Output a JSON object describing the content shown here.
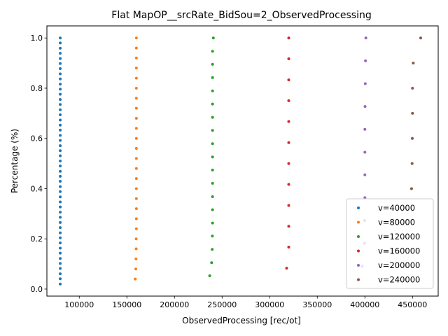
{
  "chart_data": {
    "type": "scatter",
    "title": "Flat MapOP__srcRate_BidSou=2_ObservedProcessing",
    "xlabel": "ObservedProcessing [rec/ot]",
    "ylabel": "Percentage (%)",
    "xlim": [
      66000,
      477000
    ],
    "ylim": [
      -0.028,
      1.048
    ],
    "xticks": [
      100000,
      150000,
      200000,
      250000,
      300000,
      350000,
      400000,
      450000
    ],
    "xtick_labels": [
      "100000",
      "150000",
      "200000",
      "250000",
      "300000",
      "350000",
      "400000",
      "450000"
    ],
    "yticks": [
      0.0,
      0.2,
      0.4,
      0.6,
      0.8,
      1.0
    ],
    "ytick_labels": [
      "0.0",
      "0.2",
      "0.4",
      "0.6",
      "0.8",
      "1.0"
    ],
    "grid": false,
    "legend_position": "bottom-right",
    "series": [
      {
        "name": "v=40000",
        "color": "#1f77b4",
        "points": [
          [
            80000,
            0.02
          ],
          [
            80000,
            0.041
          ],
          [
            80000,
            0.061
          ],
          [
            80000,
            0.082
          ],
          [
            80000,
            0.102
          ],
          [
            80000,
            0.122
          ],
          [
            80000,
            0.143
          ],
          [
            80000,
            0.163
          ],
          [
            80000,
            0.184
          ],
          [
            80000,
            0.204
          ],
          [
            80000,
            0.224
          ],
          [
            80000,
            0.245
          ],
          [
            80000,
            0.265
          ],
          [
            80000,
            0.286
          ],
          [
            80000,
            0.306
          ],
          [
            80000,
            0.327
          ],
          [
            80000,
            0.347
          ],
          [
            80000,
            0.367
          ],
          [
            80000,
            0.388
          ],
          [
            80000,
            0.408
          ],
          [
            80000,
            0.429
          ],
          [
            80000,
            0.449
          ],
          [
            80000,
            0.469
          ],
          [
            80000,
            0.49
          ],
          [
            80000,
            0.51
          ],
          [
            80000,
            0.531
          ],
          [
            80000,
            0.551
          ],
          [
            80000,
            0.571
          ],
          [
            80000,
            0.592
          ],
          [
            80000,
            0.612
          ],
          [
            80000,
            0.633
          ],
          [
            80000,
            0.653
          ],
          [
            80000,
            0.673
          ],
          [
            80000,
            0.694
          ],
          [
            80000,
            0.714
          ],
          [
            80000,
            0.735
          ],
          [
            80000,
            0.755
          ],
          [
            80000,
            0.776
          ],
          [
            80000,
            0.796
          ],
          [
            80000,
            0.816
          ],
          [
            80000,
            0.837
          ],
          [
            80000,
            0.857
          ],
          [
            80000,
            0.878
          ],
          [
            80000,
            0.898
          ],
          [
            80000,
            0.918
          ],
          [
            80000,
            0.939
          ],
          [
            80000,
            0.959
          ],
          [
            80000,
            0.98
          ],
          [
            80000,
            1.0
          ]
        ]
      },
      {
        "name": "v=80000",
        "color": "#ff7f0e",
        "points": [
          [
            158800,
            0.04
          ],
          [
            159400,
            0.08
          ],
          [
            159600,
            0.12
          ],
          [
            159800,
            0.16
          ],
          [
            159800,
            0.2
          ],
          [
            160000,
            0.24
          ],
          [
            160000,
            0.28
          ],
          [
            160000,
            0.32
          ],
          [
            160000,
            0.36
          ],
          [
            160000,
            0.4
          ],
          [
            160000,
            0.44
          ],
          [
            160000,
            0.48
          ],
          [
            160000,
            0.52
          ],
          [
            160000,
            0.56
          ],
          [
            160000,
            0.6
          ],
          [
            160000,
            0.64
          ],
          [
            160000,
            0.68
          ],
          [
            160000,
            0.72
          ],
          [
            160000,
            0.76
          ],
          [
            160000,
            0.8
          ],
          [
            160000,
            0.84
          ],
          [
            160000,
            0.88
          ],
          [
            160000,
            0.92
          ],
          [
            160000,
            0.96
          ],
          [
            160000,
            1.0
          ]
        ]
      },
      {
        "name": "v=120000",
        "color": "#2ca02c",
        "points": [
          [
            237000,
            0.053
          ],
          [
            239000,
            0.105
          ],
          [
            239600,
            0.158
          ],
          [
            239800,
            0.211
          ],
          [
            240000,
            0.263
          ],
          [
            240000,
            0.316
          ],
          [
            240000,
            0.368
          ],
          [
            240000,
            0.421
          ],
          [
            240000,
            0.474
          ],
          [
            240000,
            0.526
          ],
          [
            240000,
            0.579
          ],
          [
            240000,
            0.632
          ],
          [
            240000,
            0.684
          ],
          [
            240000,
            0.737
          ],
          [
            240000,
            0.789
          ],
          [
            240000,
            0.842
          ],
          [
            240000,
            0.895
          ],
          [
            240000,
            0.947
          ],
          [
            240800,
            1.0
          ]
        ]
      },
      {
        "name": "v=160000",
        "color": "#d62728",
        "points": [
          [
            317800,
            0.083
          ],
          [
            320000,
            0.167
          ],
          [
            320000,
            0.25
          ],
          [
            320000,
            0.333
          ],
          [
            320000,
            0.417
          ],
          [
            320000,
            0.5
          ],
          [
            320000,
            0.583
          ],
          [
            320000,
            0.667
          ],
          [
            320000,
            0.75
          ],
          [
            320000,
            0.833
          ],
          [
            320000,
            0.917
          ],
          [
            320000,
            1.0
          ]
        ]
      },
      {
        "name": "v=200000",
        "color": "#9467bd",
        "points": [
          [
            397200,
            0.091
          ],
          [
            399600,
            0.182
          ],
          [
            399800,
            0.273
          ],
          [
            400000,
            0.364
          ],
          [
            400000,
            0.455
          ],
          [
            400000,
            0.545
          ],
          [
            400000,
            0.636
          ],
          [
            400200,
            0.727
          ],
          [
            400400,
            0.818
          ],
          [
            400600,
            0.909
          ],
          [
            401000,
            1.0
          ]
        ]
      },
      {
        "name": "v=240000",
        "color": "#8c564b",
        "points": [
          [
            449000,
            0.4
          ],
          [
            449600,
            0.5
          ],
          [
            449800,
            0.6
          ],
          [
            450000,
            0.7
          ],
          [
            450000,
            0.8
          ],
          [
            450800,
            0.9
          ],
          [
            458600,
            1.0
          ]
        ]
      }
    ]
  }
}
